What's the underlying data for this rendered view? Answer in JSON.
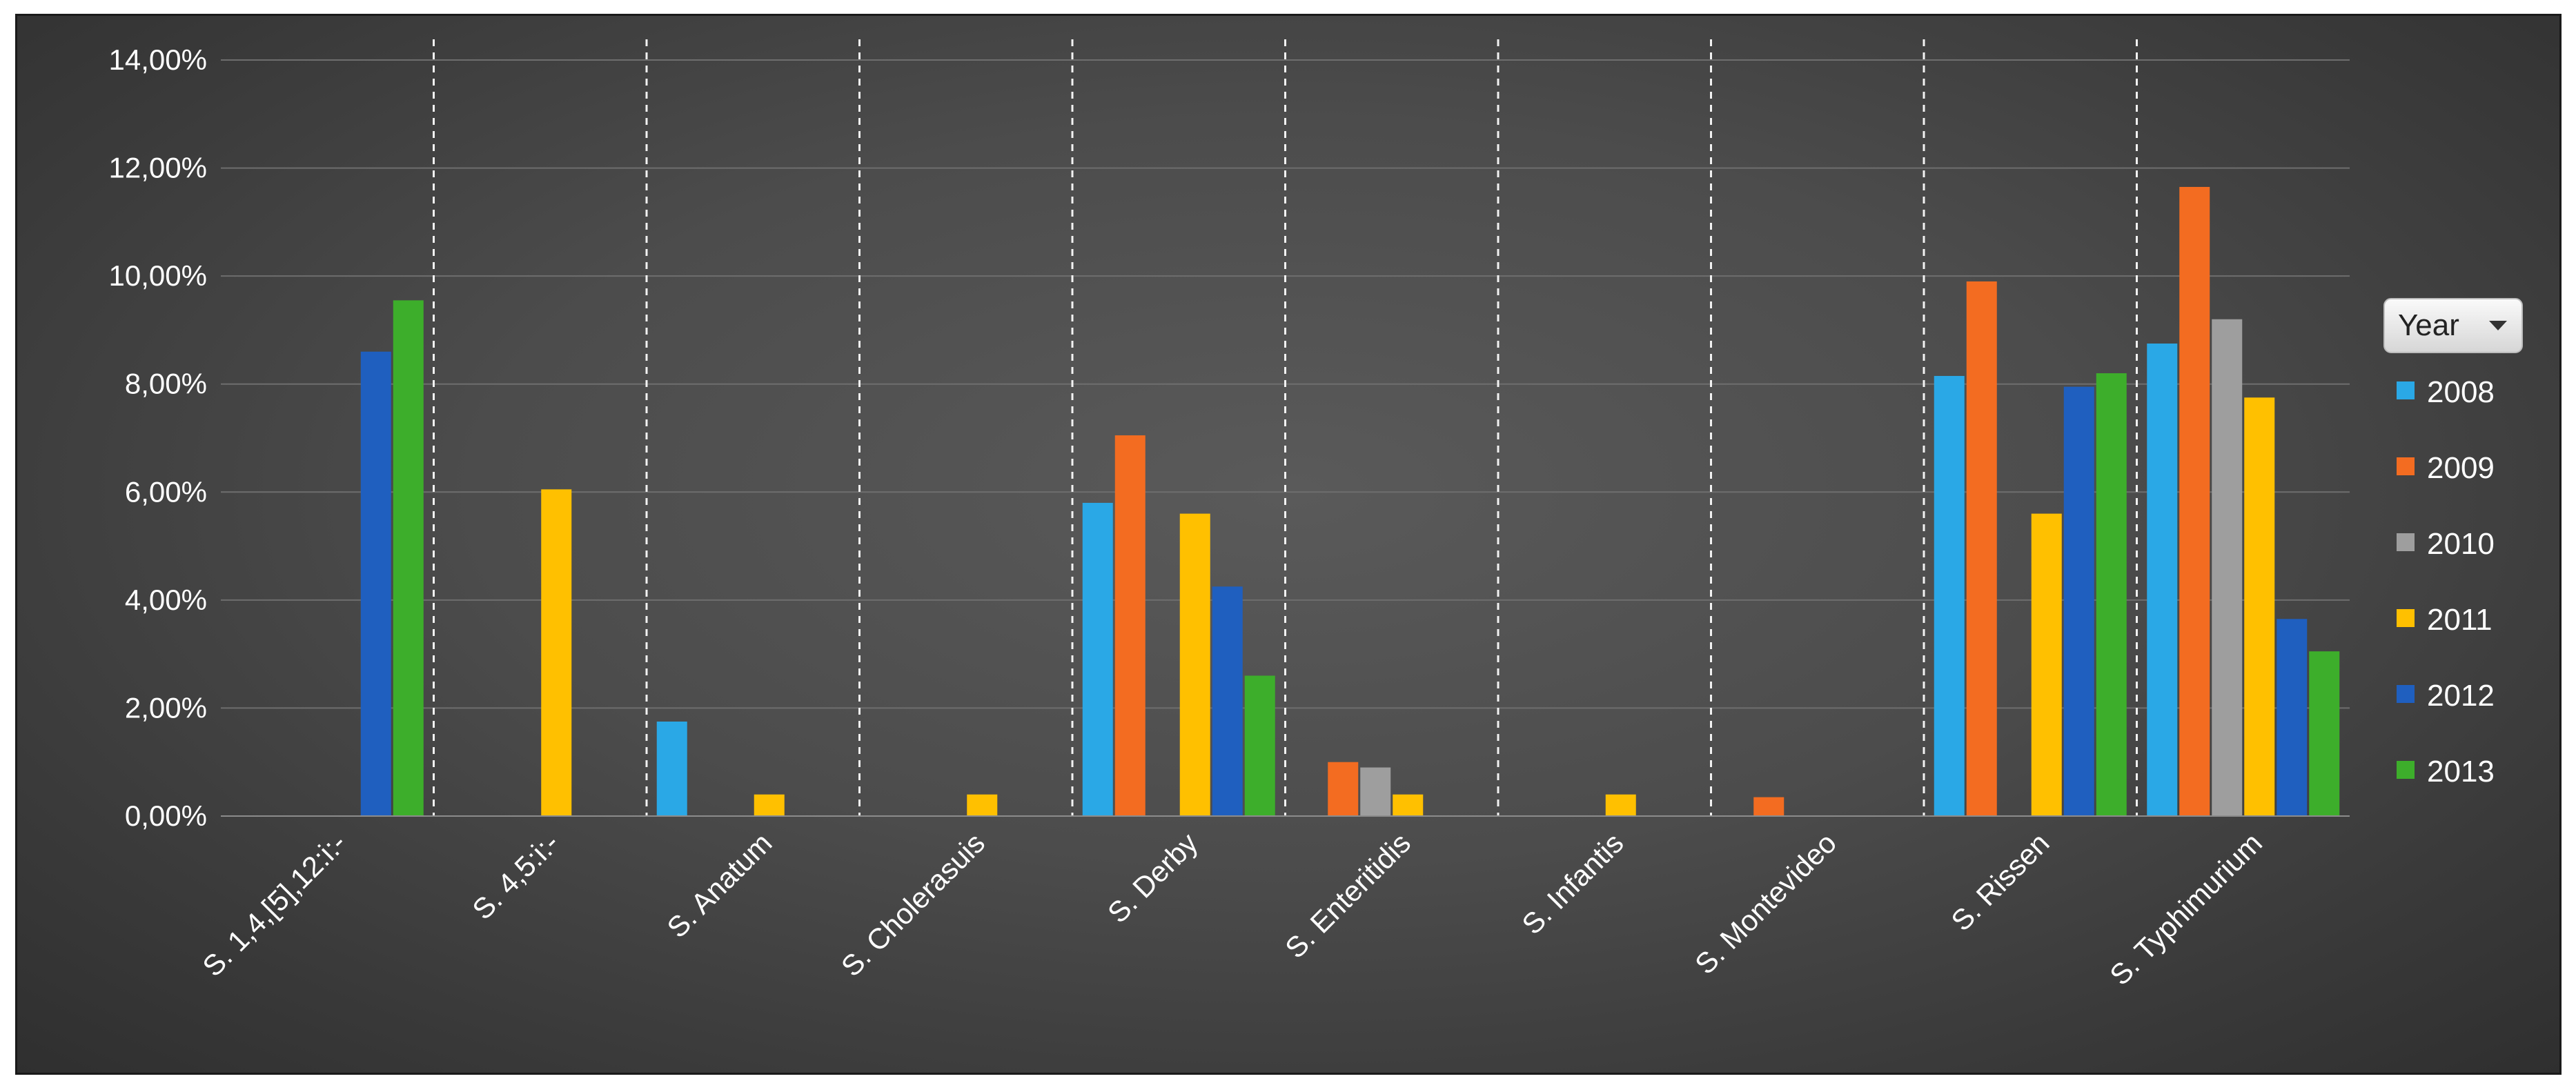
{
  "chart_data": {
    "type": "bar",
    "title": "",
    "xlabel": "",
    "ylabel": "",
    "ylim": [
      0,
      14
    ],
    "yticks": [
      "0,00%",
      "2,00%",
      "4,00%",
      "6,00%",
      "8,00%",
      "10,00%",
      "12,00%",
      "14,00%"
    ],
    "grid": true,
    "legend_placement": "right",
    "legend_title": "Year",
    "categories": [
      "S. 1,4,[5],12:i:-",
      "S. 4,5:i:-",
      "S. Anatum",
      "S. Cholerasuis",
      "S. Derby",
      "S. Enteritidis",
      "S. Infantis",
      "S. Montevideo",
      "S. Rissen",
      "S. Typhimurium"
    ],
    "series": [
      {
        "name": "2008",
        "color": "#2aa8e6",
        "values": [
          0,
          0,
          1.75,
          0,
          5.8,
          0,
          0,
          0,
          8.15,
          8.75
        ]
      },
      {
        "name": "2009",
        "color": "#f36c21",
        "values": [
          0,
          0,
          0,
          0,
          7.05,
          1.0,
          0,
          0.35,
          9.9,
          11.65
        ]
      },
      {
        "name": "2010",
        "color": "#9e9e9e",
        "values": [
          0,
          0,
          0,
          0,
          0,
          0.9,
          0,
          0,
          0,
          9.2
        ]
      },
      {
        "name": "2011",
        "color": "#ffc000",
        "values": [
          0,
          6.05,
          0.4,
          0.4,
          5.6,
          0.4,
          0.4,
          0,
          5.6,
          7.75
        ]
      },
      {
        "name": "2012",
        "color": "#1f5fbf",
        "values": [
          8.6,
          0,
          0,
          0,
          4.25,
          0,
          0,
          0,
          7.95,
          3.65
        ]
      },
      {
        "name": "2013",
        "color": "#3dae2b",
        "values": [
          9.55,
          0,
          0,
          0,
          2.6,
          0,
          0,
          0,
          8.2,
          3.05
        ]
      }
    ]
  }
}
